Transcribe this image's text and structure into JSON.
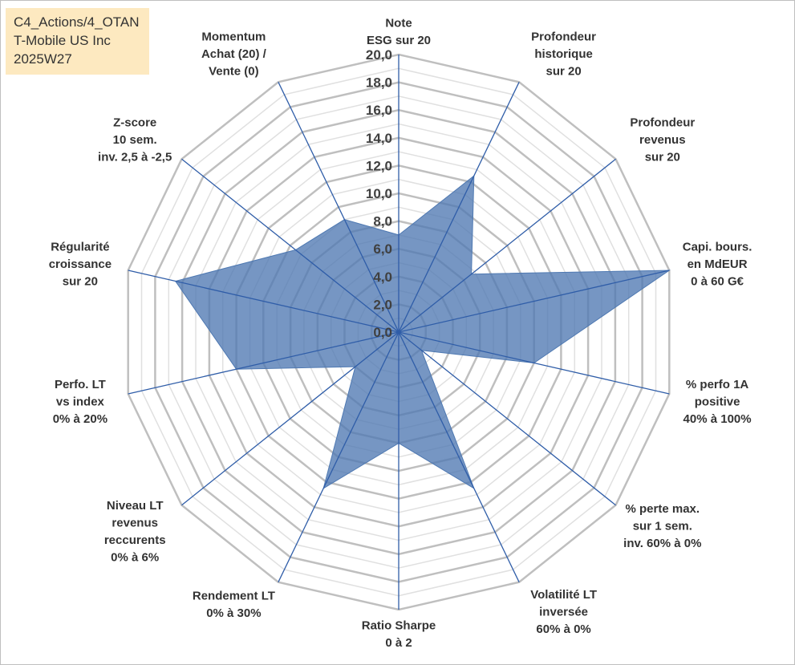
{
  "info": {
    "line1": "C4_Actions/4_OTAN",
    "line2": "T-Mobile US Inc",
    "line3": "2025W27"
  },
  "chart_data": {
    "type": "radar",
    "title": "",
    "rmin": 0,
    "rmax": 20,
    "tick_step": 2,
    "minor_step": 1,
    "tick_labels": [
      "0,0",
      "2,0",
      "4,0",
      "6,0",
      "8,0",
      "10,0",
      "12,0",
      "14,0",
      "16,0",
      "18,0",
      "20,0"
    ],
    "axes": [
      "Note\nESG sur 20",
      "Profondeur\nhistorique\nsur 20",
      "Profondeur\nrevenus\nsur 20",
      "Capi. bours.\nen MdEUR\n0 à 60 G€",
      "% perfo 1A\npositive\n40% à 100%",
      "% perte max.\nsur 1 sem.\ninv. 60% à 0%",
      "Volatilité LT\ninversée\n60% à 0%",
      "Ratio Sharpe\n0 à 2",
      "Rendement LT\n0% à 30%",
      "Niveau LT\nrevenus\nreccurents\n0% à 6%",
      "Perfo. LT\nvs index\n0% à 20%",
      "Régularité\ncroissance\nsur 20",
      "Z-score\n10 sem.\ninv. 2,5 à -2,5",
      "Momentum\nAchat (20) /\nVente (0)"
    ],
    "series": [
      {
        "values": [
          7.0,
          12.5,
          6.7,
          20.0,
          10.0,
          2.1,
          12.5,
          8.0,
          12.5,
          4.0,
          12.0,
          16.5,
          9.5,
          9.0
        ]
      }
    ],
    "colors": {
      "fill": "#4f79b2",
      "fill_opacity": "0.78",
      "spoke": "#2f5da8",
      "major_grid": "#bfbfbf",
      "minor_grid": "#e0e0e0"
    },
    "grid": true,
    "legend": "none"
  }
}
